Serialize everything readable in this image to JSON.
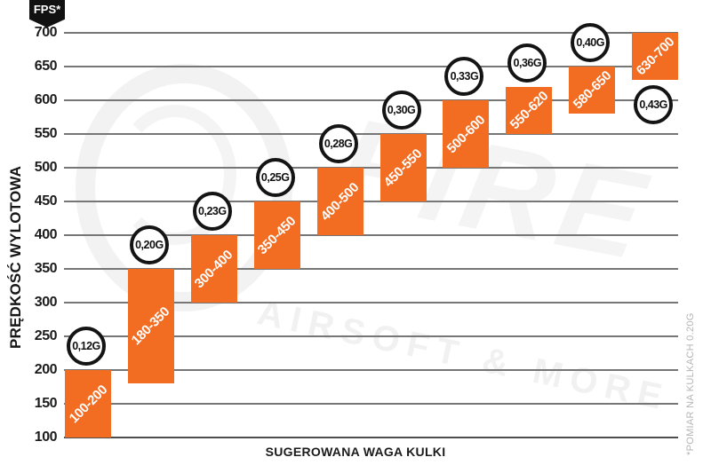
{
  "chart_data": {
    "type": "bar",
    "title": "",
    "xlabel": "SUGEROWANA WAGA KULKI",
    "ylabel": "PRĘDKOŚĆ WYLOTOWA",
    "y_unit_badge": "FPS*",
    "footnote": "*POMIAR NA KULKACH 0.20G",
    "ylim": [
      100,
      700
    ],
    "y_ticks": [
      700,
      650,
      600,
      550,
      500,
      450,
      400,
      350,
      300,
      250,
      200,
      150,
      100
    ],
    "grid": true,
    "legend_position": "none",
    "bar_color": "#F26C21",
    "gridline_color": "#767676",
    "badge_border_color": "#141414",
    "bars": [
      {
        "weight": "0,12G",
        "label": "100-200",
        "fps_min": 100,
        "fps_max": 200,
        "badge_position": "above"
      },
      {
        "weight": "0,20G",
        "label": "180-350",
        "fps_min": 180,
        "fps_max": 350,
        "badge_position": "above"
      },
      {
        "weight": "0,23G",
        "label": "300-400",
        "fps_min": 300,
        "fps_max": 400,
        "badge_position": "above"
      },
      {
        "weight": "0,25G",
        "label": "350-450",
        "fps_min": 350,
        "fps_max": 450,
        "badge_position": "above"
      },
      {
        "weight": "0,28G",
        "label": "400-500",
        "fps_min": 400,
        "fps_max": 500,
        "badge_position": "above"
      },
      {
        "weight": "0,30G",
        "label": "450-550",
        "fps_min": 450,
        "fps_max": 550,
        "badge_position": "above"
      },
      {
        "weight": "0,33G",
        "label": "500-600",
        "fps_min": 500,
        "fps_max": 600,
        "badge_position": "above"
      },
      {
        "weight": "0,36G",
        "label": "550-620",
        "fps_min": 550,
        "fps_max": 620,
        "badge_position": "above"
      },
      {
        "weight": "0,40G",
        "label": "580-650",
        "fps_min": 580,
        "fps_max": 650,
        "badge_position": "above"
      },
      {
        "weight": "0,43G",
        "label": "630-700",
        "fps_min": 630,
        "fps_max": 700,
        "badge_position": "below"
      }
    ]
  },
  "watermark": {
    "brand": "FIRE",
    "tagline": "AIRSOFT & MORE"
  }
}
